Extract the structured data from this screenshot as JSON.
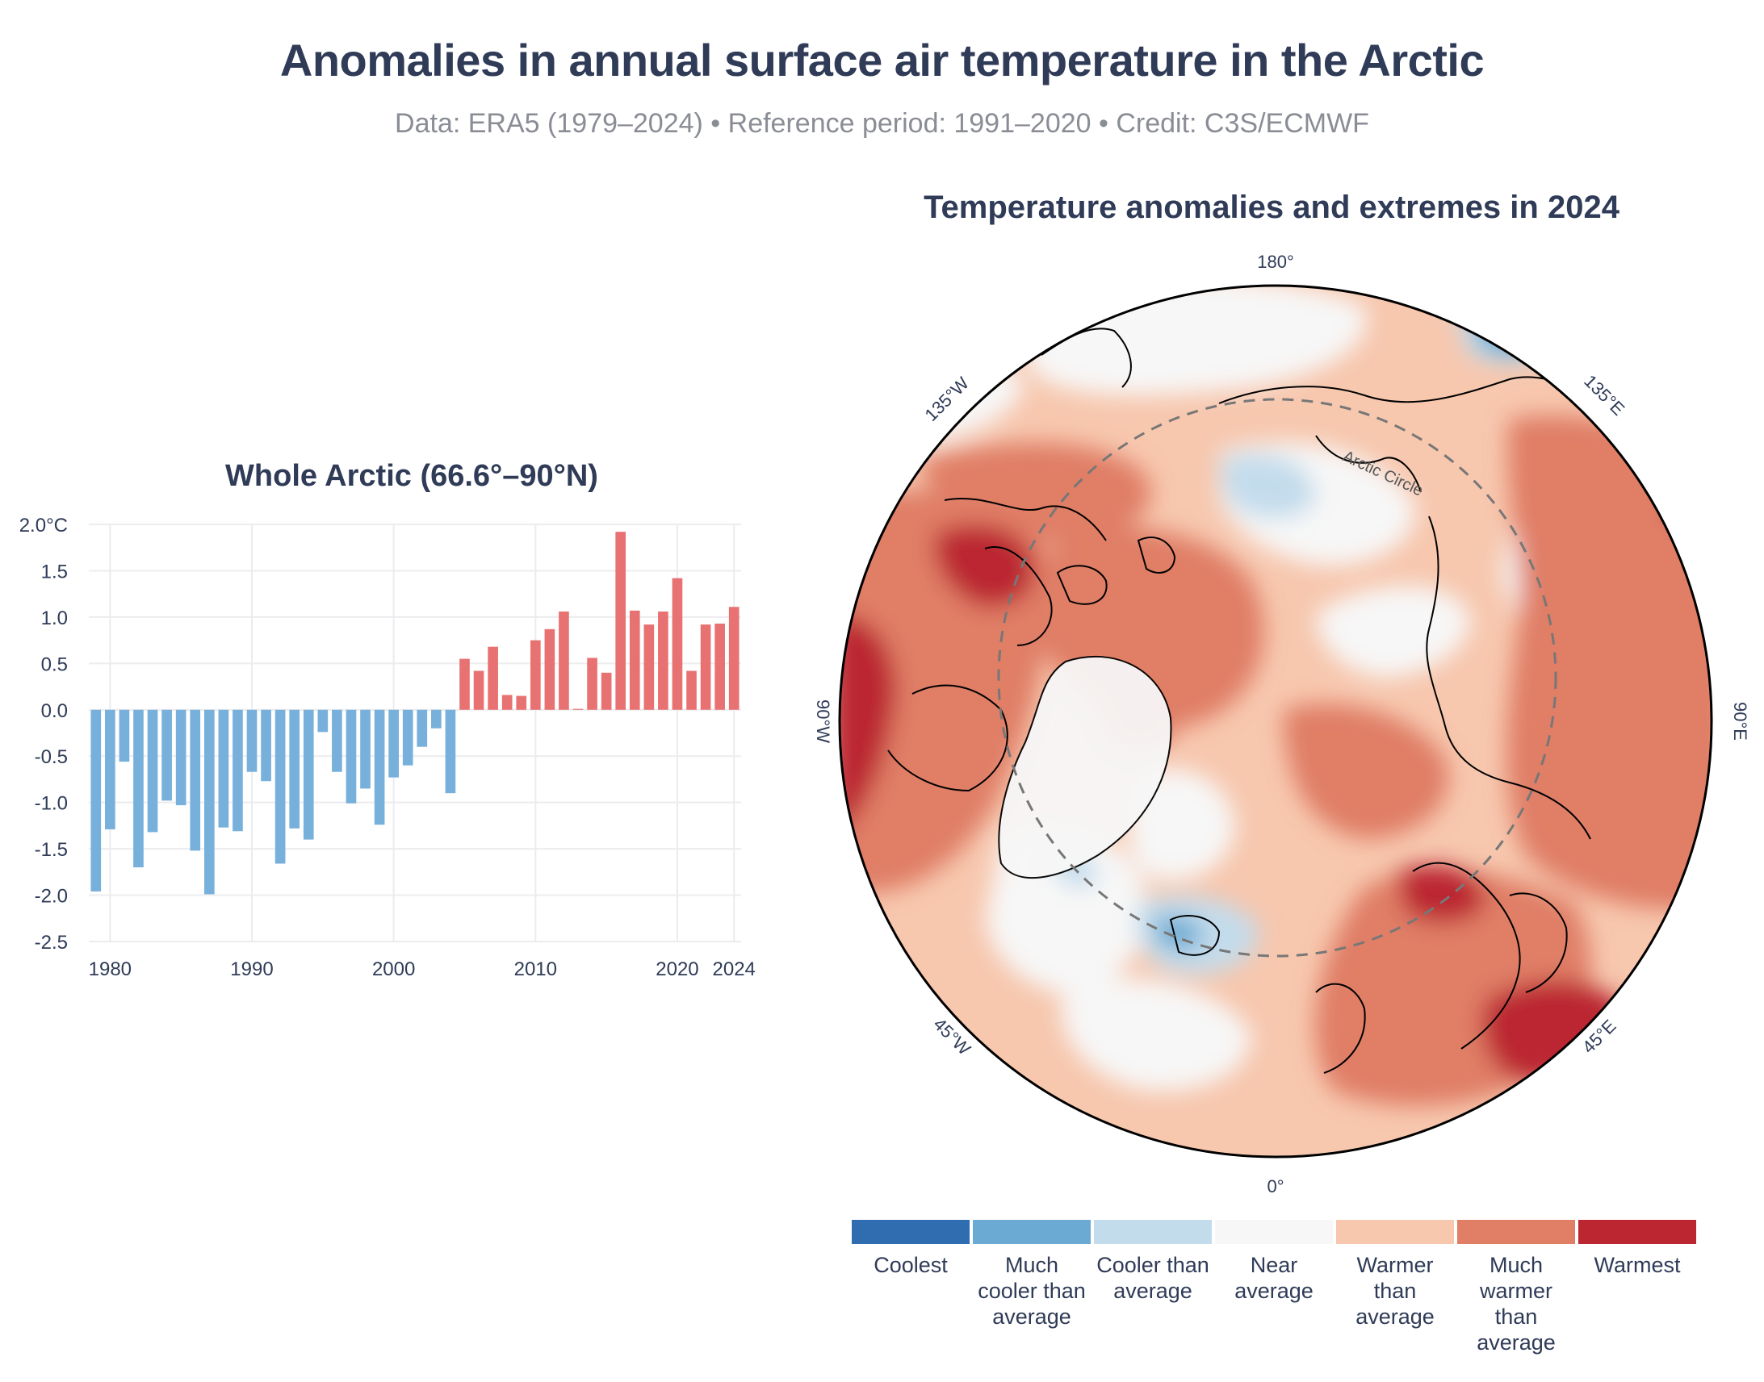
{
  "title": "Anomalies in annual surface air temperature in the Arctic",
  "subtitle": "Data: ERA5 (1979–2024) • Reference period: 1991–2020 • Credit: C3S/ECMWF",
  "colors": {
    "title": "#2f3b57",
    "subtitle": "#8a8d95",
    "bar_negative": "#78b0dc",
    "bar_positive": "#e87272",
    "grid": "#ececef"
  },
  "chart_data": [
    {
      "type": "bar",
      "title": "Whole Arctic (66.6°–90°N)",
      "xlabel": "",
      "ylabel": "",
      "unit": "°C",
      "ylim": [
        -2.5,
        2.0
      ],
      "yticks": [
        2.0,
        1.5,
        1.0,
        0.5,
        0.0,
        -0.5,
        -1.0,
        -1.5,
        -2.0,
        -2.5
      ],
      "ytick_labels": [
        "2.0°C",
        "1.5",
        "1.0",
        "0.5",
        "0.0",
        "-0.5",
        "-1.0",
        "-1.5",
        "-2.0",
        "-2.5"
      ],
      "xticks": [
        1980,
        1990,
        2000,
        2010,
        2020,
        2024
      ],
      "xtick_labels": [
        "1980",
        "1990",
        "2000",
        "2010",
        "2020",
        "2024"
      ],
      "x": [
        1979,
        1980,
        1981,
        1982,
        1983,
        1984,
        1985,
        1986,
        1987,
        1988,
        1989,
        1990,
        1991,
        1992,
        1993,
        1994,
        1995,
        1996,
        1997,
        1998,
        1999,
        2000,
        2001,
        2002,
        2003,
        2004,
        2005,
        2006,
        2007,
        2008,
        2009,
        2010,
        2011,
        2012,
        2013,
        2014,
        2015,
        2016,
        2017,
        2018,
        2019,
        2020,
        2021,
        2022,
        2023,
        2024
      ],
      "values": [
        -1.96,
        -1.29,
        -0.56,
        -1.7,
        -1.32,
        -0.98,
        -1.03,
        -1.52,
        -1.99,
        -1.27,
        -1.31,
        -0.67,
        -0.77,
        -1.66,
        -1.28,
        -1.4,
        -0.24,
        -0.67,
        -1.01,
        -0.85,
        -1.24,
        -0.73,
        -0.6,
        -0.4,
        -0.2,
        -0.9,
        0.55,
        0.42,
        0.68,
        0.16,
        0.15,
        0.75,
        0.87,
        1.06,
        0.01,
        0.56,
        0.4,
        1.92,
        1.07,
        0.92,
        1.06,
        1.42,
        0.42,
        0.92,
        0.93,
        1.11
      ],
      "grid": true,
      "legend": "none"
    },
    {
      "type": "map",
      "title": "Temperature anomalies and extremes in 2024",
      "projection": "north polar stereographic",
      "longitude_labels": [
        "180°",
        "135°E",
        "90°E",
        "45°E",
        "0°",
        "45°W",
        "90°W",
        "135°W"
      ],
      "annotation": "Arctic Circle",
      "legend": [
        {
          "label": "Coolest",
          "color": "#2f6db0"
        },
        {
          "label": "Much cooler than average",
          "color": "#6aaad3"
        },
        {
          "label": "Cooler than average",
          "color": "#c3dcec"
        },
        {
          "label": "Near average",
          "color": "#f7f7f7"
        },
        {
          "label": "Warmer than average",
          "color": "#f7c7ae"
        },
        {
          "label": "Much warmer than average",
          "color": "#e07e66"
        },
        {
          "label": "Warmest",
          "color": "#bb2631"
        }
      ]
    }
  ]
}
